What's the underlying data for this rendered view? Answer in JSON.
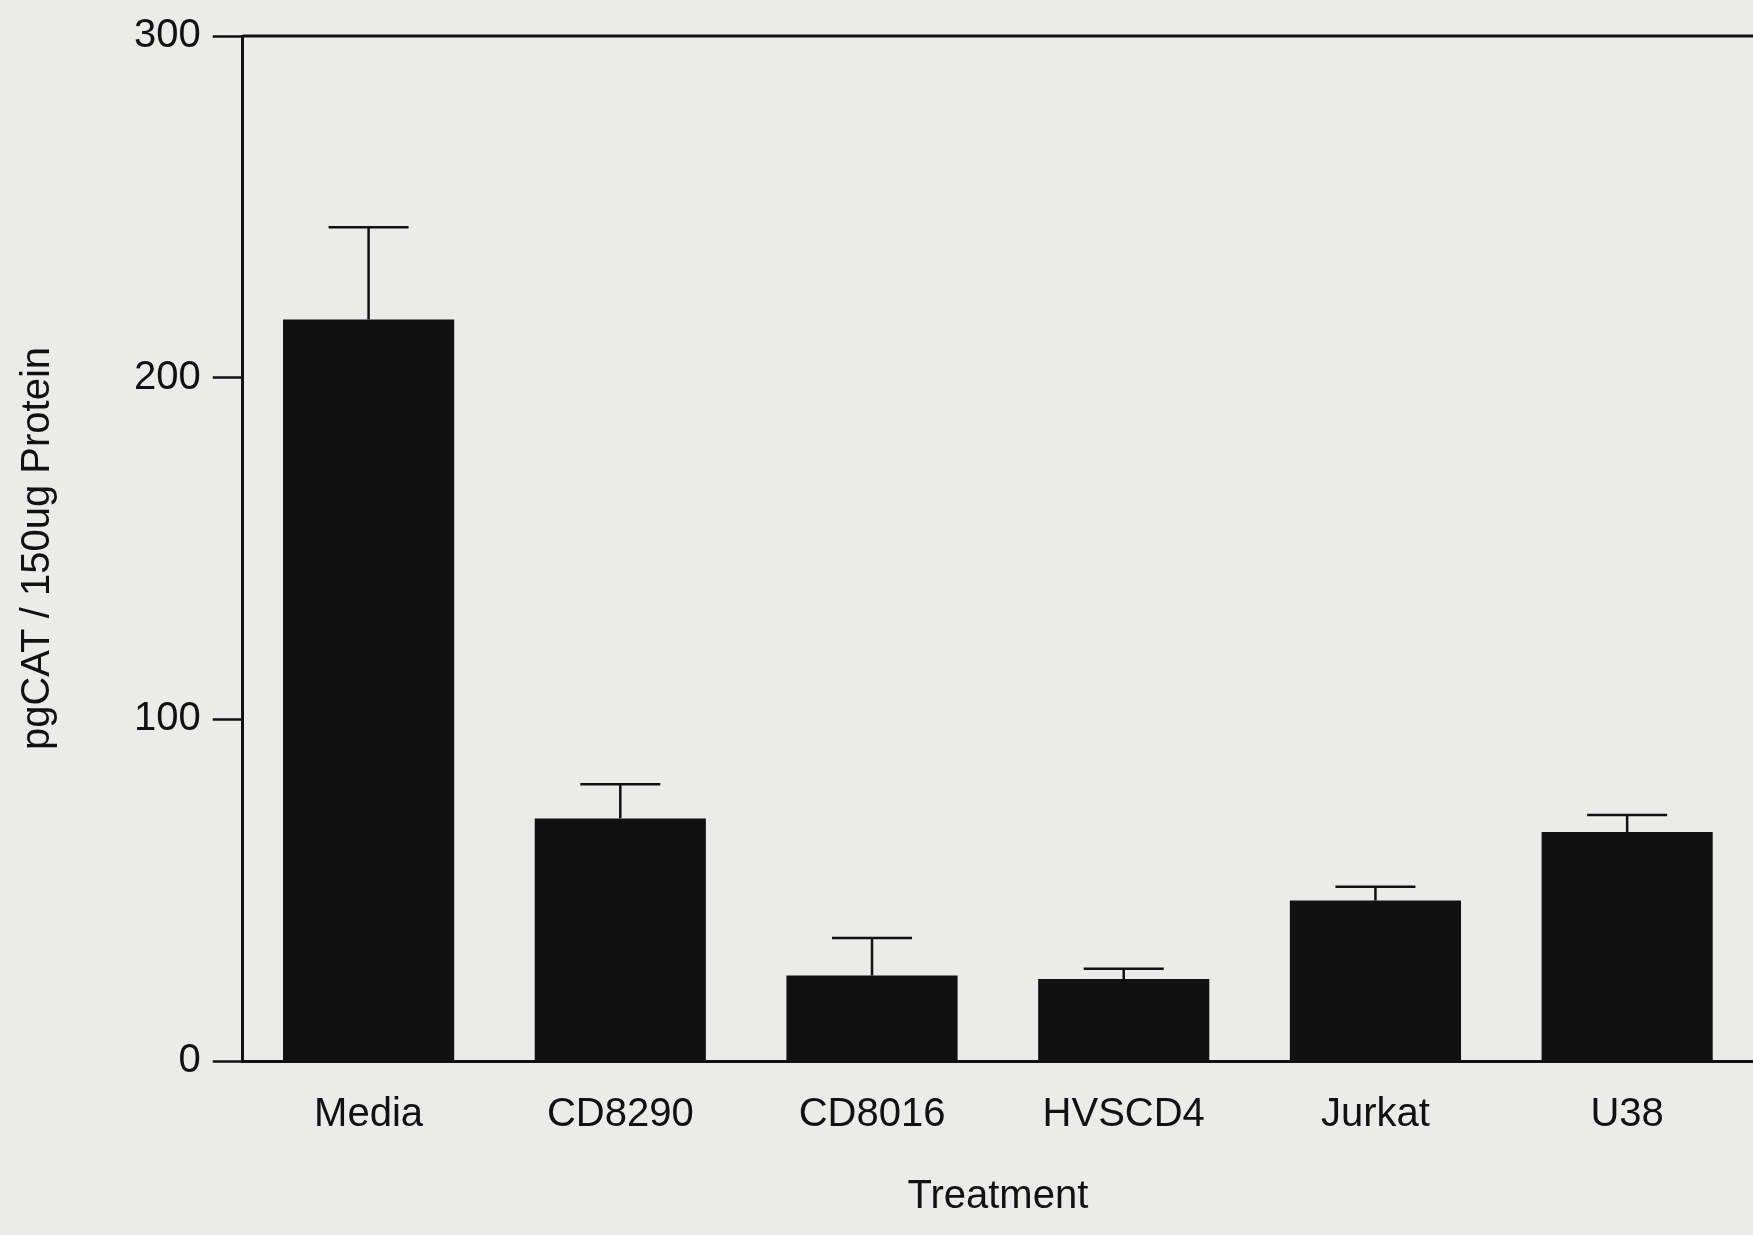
{
  "chart_data": {
    "type": "bar",
    "xlabel": "Treatment",
    "ylabel": "pgCAT / 150ug Protein",
    "categories": [
      "Media",
      "CD8290",
      "CD8016",
      "HVSCD4",
      "Jurkat",
      "U38"
    ],
    "values": [
      217,
      71,
      25,
      24,
      47,
      67
    ],
    "errors": [
      [
        217,
        244
      ],
      [
        71,
        81
      ],
      [
        25,
        36
      ],
      [
        24,
        27
      ],
      [
        47,
        51
      ],
      [
        67,
        72
      ]
    ],
    "color": "#111111",
    "ylim": [
      0,
      300
    ],
    "yticks": [
      0,
      100,
      200,
      300
    ],
    "grid": false,
    "legend": false
  }
}
